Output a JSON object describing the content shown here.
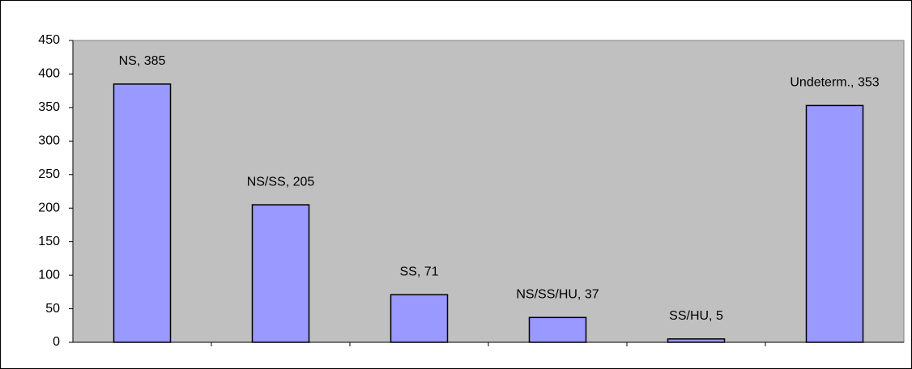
{
  "chart_data": {
    "type": "bar",
    "values": [
      385,
      205,
      71,
      37,
      5,
      353
    ],
    "value_labels": [
      "NS, 385",
      "NS/SS, 205",
      "SS, 71",
      "NS/SS/HU, 37",
      "SS/HU, 5",
      "Undeterm., 353"
    ],
    "color": "#9999ff",
    "ylim": [
      0,
      450
    ],
    "yticks": [
      0,
      50,
      100,
      150,
      200,
      250,
      300,
      350,
      400,
      450
    ],
    "plot_background": "#c0c0c0"
  }
}
